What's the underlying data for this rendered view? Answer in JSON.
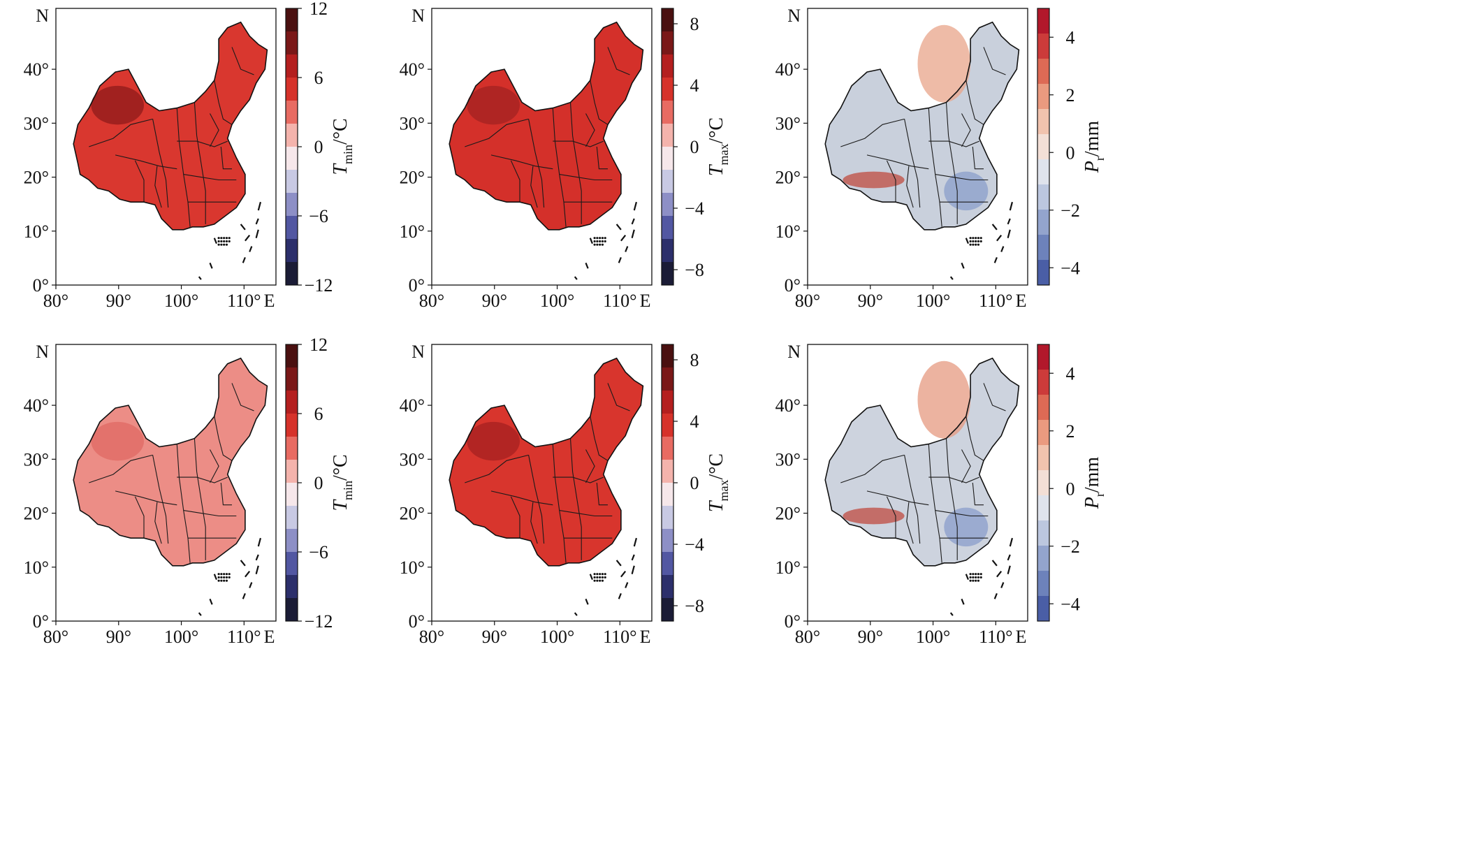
{
  "figure": {
    "panels": [
      {
        "id": "top-left",
        "variable": "Tmin",
        "axis": {
          "x_ticks": [
            "80°",
            "90°",
            "100°",
            "110°",
            "E"
          ],
          "y_ticks": [
            "0°",
            "10°",
            "20°",
            "30°",
            "40°",
            "N"
          ]
        },
        "colorbar": {
          "label_main": "T",
          "label_sub": "min",
          "label_unit": "/°C",
          "ticks": [
            "12",
            "6",
            "0",
            "−6",
            "−12"
          ],
          "range": [
            -12,
            12
          ],
          "scheme": "diverging-red-blue"
        },
        "field_color": "#d9372f",
        "hotspot_color": "#8e1b1b"
      },
      {
        "id": "top-middle",
        "variable": "Tmax",
        "axis": {
          "x_ticks": [
            "80°",
            "90°",
            "100°",
            "110°",
            "E"
          ],
          "y_ticks": [
            "0°",
            "10°",
            "20°",
            "30°",
            "40°",
            "N"
          ]
        },
        "colorbar": {
          "label_main": "T",
          "label_sub": "max",
          "label_unit": "/°C",
          "ticks": [
            "8",
            "4",
            "0",
            "−4",
            "−8"
          ],
          "range": [
            -9,
            9
          ],
          "scheme": "diverging-red-blue"
        },
        "field_color": "#d4302a",
        "hotspot_color": "#a32221"
      },
      {
        "id": "top-right",
        "variable": "Pr",
        "axis": {
          "x_ticks": [
            "80°",
            "90°",
            "100°",
            "110°",
            "E"
          ],
          "y_ticks": [
            "0°",
            "10°",
            "20°",
            "30°",
            "40°",
            "N"
          ]
        },
        "colorbar": {
          "label_main": "P",
          "label_sub": "r",
          "label_unit": "/mm",
          "ticks": [
            "4",
            "2",
            "0",
            "−2",
            "−4"
          ],
          "range": [
            -4.6,
            5
          ],
          "scheme": "diverging-red-blue-light"
        },
        "field_color": "#c9d0dc",
        "hotspot_color": "#e8a48a"
      },
      {
        "id": "bottom-left",
        "variable": "Tmin",
        "axis": {
          "x_ticks": [
            "80°",
            "90°",
            "100°",
            "110°",
            "E"
          ],
          "y_ticks": [
            "0°",
            "10°",
            "20°",
            "30°",
            "40°",
            "N"
          ]
        },
        "colorbar": {
          "label_main": "T",
          "label_sub": "min",
          "label_unit": "/°C",
          "ticks": [
            "12",
            "6",
            "0",
            "−6",
            "−12"
          ],
          "range": [
            -12,
            12
          ],
          "scheme": "diverging-red-blue"
        },
        "field_color": "#ec8d86",
        "hotspot_color": "#e06a63"
      },
      {
        "id": "bottom-middle",
        "variable": "Tmax",
        "axis": {
          "x_ticks": [
            "80°",
            "90°",
            "100°",
            "110°",
            "E"
          ],
          "y_ticks": [
            "0°",
            "10°",
            "20°",
            "30°",
            "40°",
            "N"
          ]
        },
        "colorbar": {
          "label_main": "T",
          "label_sub": "max",
          "label_unit": "/°C",
          "ticks": [
            "8",
            "4",
            "0",
            "−4",
            "−8"
          ],
          "range": [
            -9,
            9
          ],
          "scheme": "diverging-red-blue"
        },
        "field_color": "#d8352d",
        "hotspot_color": "#a52020"
      },
      {
        "id": "bottom-right",
        "variable": "Pr",
        "axis": {
          "x_ticks": [
            "80°",
            "90°",
            "100°",
            "110°",
            "E"
          ],
          "y_ticks": [
            "0°",
            "10°",
            "20°",
            "30°",
            "40°",
            "N"
          ]
        },
        "colorbar": {
          "label_main": "P",
          "label_sub": "r",
          "label_unit": "/mm",
          "ticks": [
            "4",
            "2",
            "0",
            "−2",
            "−4"
          ],
          "range": [
            -4.6,
            5
          ],
          "scheme": "diverging-red-blue-light"
        },
        "field_color": "#cdd3de",
        "hotspot_color": "#e59a80"
      }
    ],
    "colors": {
      "red_dark": "#5a1010",
      "red": "#d42c25",
      "neutral": "#f2e6e6",
      "blue": "#5a6fb4",
      "blue_dark": "#1b1f3b"
    }
  }
}
